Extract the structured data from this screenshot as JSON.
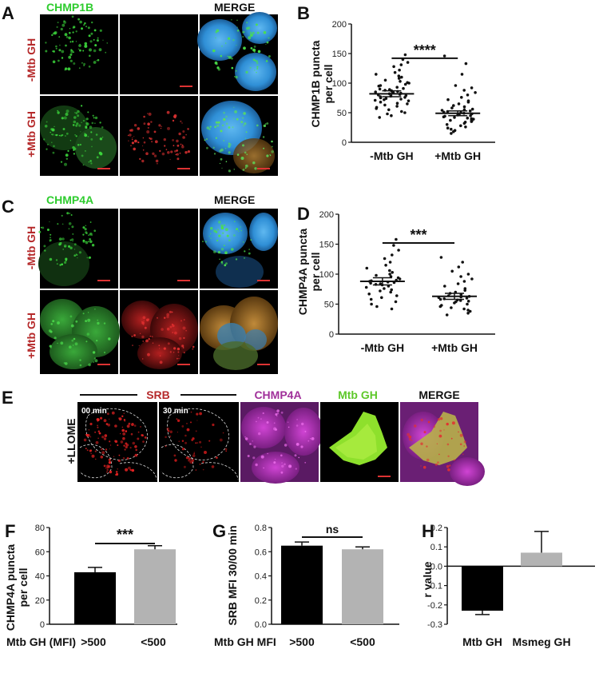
{
  "panels": {
    "A": {
      "letter": "A",
      "col_headers": [
        "CHMP1B",
        "",
        "MERGE"
      ],
      "row_labels": [
        "-Mtb GH",
        "+Mtb GH"
      ]
    },
    "C": {
      "letter": "C",
      "col_headers": [
        "CHMP4A",
        "",
        "MERGE"
      ],
      "row_labels": [
        "-Mtb GH",
        "+Mtb GH"
      ]
    },
    "E": {
      "letter": "E",
      "headers": [
        "SRB",
        "CHMP4A",
        "Mtb GH",
        "MERGE"
      ],
      "row_label": "+LLOME",
      "timestamps": [
        "00 min",
        "30 min"
      ]
    }
  },
  "colors": {
    "green": "#2ecc2e",
    "red_label": "#b5292a",
    "magenta": "#a0309a",
    "lime": "#8ee02c"
  },
  "chart_data": [
    {
      "id": "B",
      "letter": "B",
      "type": "scatter",
      "categories": [
        "-Mtb GH",
        "+Mtb GH"
      ],
      "ylabel": "CHMP1B puncta per cell",
      "ylim": [
        0,
        200
      ],
      "yticks": [
        0,
        50,
        100,
        150,
        200
      ],
      "means": [
        82,
        49
      ],
      "sem": [
        5,
        4
      ],
      "points": [
        [
          148,
          140,
          135,
          131,
          128,
          122,
          118,
          115,
          112,
          110,
          108,
          105,
          103,
          101,
          100,
          98,
          96,
          95,
          93,
          91,
          90,
          89,
          88,
          87,
          86,
          85,
          84,
          83,
          82,
          81,
          80,
          79,
          78,
          77,
          76,
          75,
          74,
          73,
          72,
          71,
          70,
          68,
          66,
          65,
          63,
          61,
          59,
          57,
          55,
          52,
          50,
          48,
          45,
          42
        ],
        [
          146,
          133,
          115,
          96,
          92,
          88,
          84,
          80,
          76,
          72,
          70,
          68,
          65,
          62,
          60,
          58,
          56,
          55,
          54,
          53,
          52,
          51,
          50,
          49,
          48,
          47,
          46,
          45,
          44,
          43,
          42,
          41,
          40,
          39,
          38,
          37,
          36,
          35,
          34,
          32,
          30,
          28,
          26,
          24,
          22,
          20,
          18,
          15
        ]
      ],
      "significance": "****"
    },
    {
      "id": "D",
      "letter": "D",
      "type": "scatter",
      "categories": [
        "-Mtb GH",
        "+Mtb GH"
      ],
      "ylabel": "CHMP4A puncta per cell",
      "ylim": [
        0,
        200
      ],
      "yticks": [
        0,
        50,
        100,
        150,
        200
      ],
      "means": [
        88,
        63
      ],
      "sem": [
        6,
        5
      ],
      "points": [
        [
          158,
          148,
          140,
          132,
          126,
          120,
          115,
          110,
          106,
          103,
          100,
          98,
          96,
          94,
          92,
          90,
          89,
          88,
          87,
          86,
          85,
          84,
          83,
          82,
          80,
          78,
          76,
          74,
          72,
          70,
          67,
          64,
          61,
          58,
          54,
          50,
          46,
          42
        ],
        [
          128,
          120,
          112,
          105,
          100,
          96,
          92,
          88,
          84,
          80,
          76,
          73,
          70,
          68,
          66,
          64,
          63,
          62,
          61,
          60,
          59,
          58,
          57,
          56,
          55,
          54,
          52,
          50,
          48,
          46,
          44,
          42,
          40,
          38,
          35,
          32
        ]
      ],
      "significance": "***"
    },
    {
      "id": "F",
      "letter": "F",
      "type": "bar",
      "categories": [
        ">500",
        "<500"
      ],
      "category_prefix": "Mtb GH (MFI)",
      "values": [
        43,
        62
      ],
      "errors": [
        4,
        3
      ],
      "colors": [
        "#000000",
        "#b3b3b3"
      ],
      "ylabel": "CHMP4A puncta per cell",
      "ylim": [
        0,
        80
      ],
      "yticks": [
        0,
        20,
        40,
        60,
        80
      ],
      "significance": "***"
    },
    {
      "id": "G",
      "letter": "G",
      "type": "bar",
      "categories": [
        ">500",
        "<500"
      ],
      "category_prefix": "Mtb GH MFI",
      "values": [
        0.65,
        0.62
      ],
      "errors": [
        0.03,
        0.02
      ],
      "colors": [
        "#000000",
        "#b3b3b3"
      ],
      "ylabel": "SRB MFI 30/00 min",
      "ylim": [
        0,
        0.8
      ],
      "yticks": [
        "0.0",
        "0.2",
        "0.4",
        "0.6",
        "0.8"
      ],
      "significance": "ns"
    },
    {
      "id": "H",
      "letter": "H",
      "type": "bar",
      "categories": [
        "Mtb GH",
        "Msmeg GH"
      ],
      "values": [
        -0.23,
        0.07
      ],
      "errors": [
        0.02,
        0.11
      ],
      "colors": [
        "#000000",
        "#b3b3b3"
      ],
      "ylabel": "r value",
      "ylim": [
        -0.3,
        0.2
      ],
      "yticks": [
        "-0.3",
        "-0.2",
        "-0.1",
        "0.0",
        "0.1",
        "0.2"
      ]
    }
  ]
}
